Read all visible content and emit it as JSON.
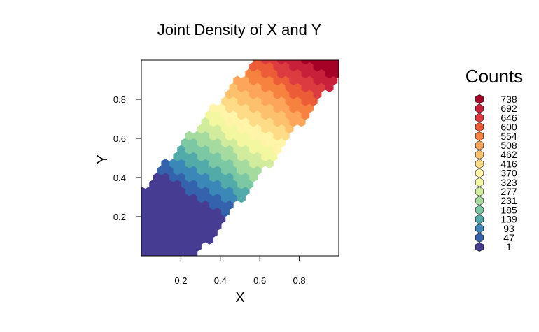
{
  "chart_data": {
    "type": "heatmap",
    "subtype": "hexbin",
    "title": "Joint Density of X and Y",
    "xlabel": "X",
    "ylabel": "Y",
    "xlim": [
      0,
      1
    ],
    "ylim": [
      0,
      1
    ],
    "x_ticks": [
      "0.2",
      "0.4",
      "0.6",
      "0.8"
    ],
    "y_ticks": [
      "0.2",
      "0.4",
      "0.6",
      "0.8"
    ],
    "grid": false,
    "legend": {
      "title": "Counts",
      "placement": "right",
      "labels": [
        "738",
        "692",
        "646",
        "600",
        "554",
        "508",
        "462",
        "416",
        "370",
        "323",
        "277",
        "231",
        "185",
        "139",
        "93",
        "47",
        "1"
      ],
      "colors": [
        "#a50026",
        "#c8203a",
        "#dc3c40",
        "#ec5d37",
        "#f7813f",
        "#fca55b",
        "#fdc06c",
        "#fedb86",
        "#fff4a8",
        "#f2f7a0",
        "#d1ec9c",
        "#a6dba0",
        "#7cc8a4",
        "#52aaa9",
        "#3b87b7",
        "#3462ad",
        "#463d93"
      ]
    },
    "density_model": "counts increase with Y and with X; support roughly Y <= 1.15*X + 0.35 and Y >= 1.25*X - 0.35, bounded to the unit square"
  }
}
